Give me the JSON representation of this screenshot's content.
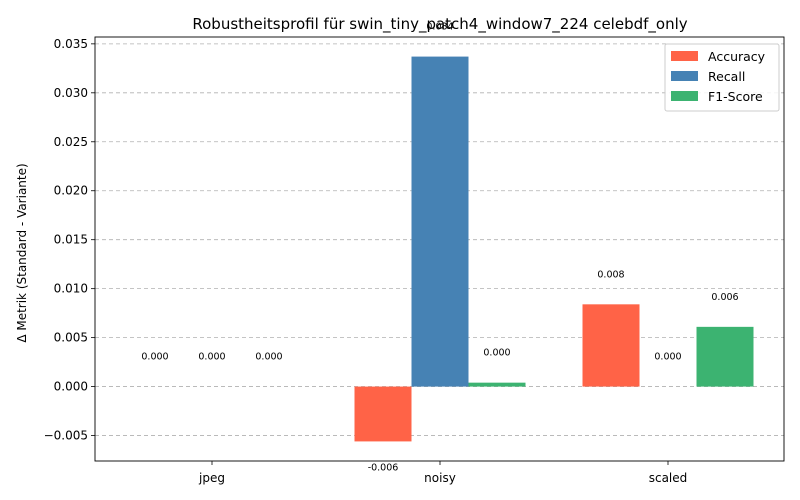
{
  "chart_data": {
    "type": "bar",
    "title": "Robustheitsprofil für swin_tiny_patch4_window7_224 celebdf_only",
    "xlabel": "",
    "ylabel": "Δ Metrik (Standard - Variante)",
    "categories": [
      "jpeg",
      "noisy",
      "scaled"
    ],
    "series": [
      {
        "name": "Accuracy",
        "color": "#ff6347",
        "values": [
          0.0,
          -0.0056,
          0.0084
        ],
        "labels": [
          "0.000",
          "-0.006",
          "0.008"
        ]
      },
      {
        "name": "Recall",
        "color": "#4682b4",
        "values": [
          0.0,
          0.0337,
          0.0
        ],
        "labels": [
          "0.000",
          "0.034",
          "0.000"
        ]
      },
      {
        "name": "F1-Score",
        "color": "#3cb371",
        "values": [
          0.0,
          0.0004,
          0.0061
        ],
        "labels": [
          "0.000",
          "0.000",
          "0.006"
        ]
      }
    ],
    "ylim": [
      -0.0076,
      0.0357
    ],
    "yticks": [
      -0.005,
      0.0,
      0.005,
      0.01,
      0.015,
      0.02,
      0.025,
      0.03,
      0.035
    ],
    "ytick_labels": [
      "−0.005",
      "0.000",
      "0.005",
      "0.010",
      "0.015",
      "0.020",
      "0.025",
      "0.030",
      "0.035"
    ],
    "grid": "y",
    "legend_position": "upper right"
  }
}
